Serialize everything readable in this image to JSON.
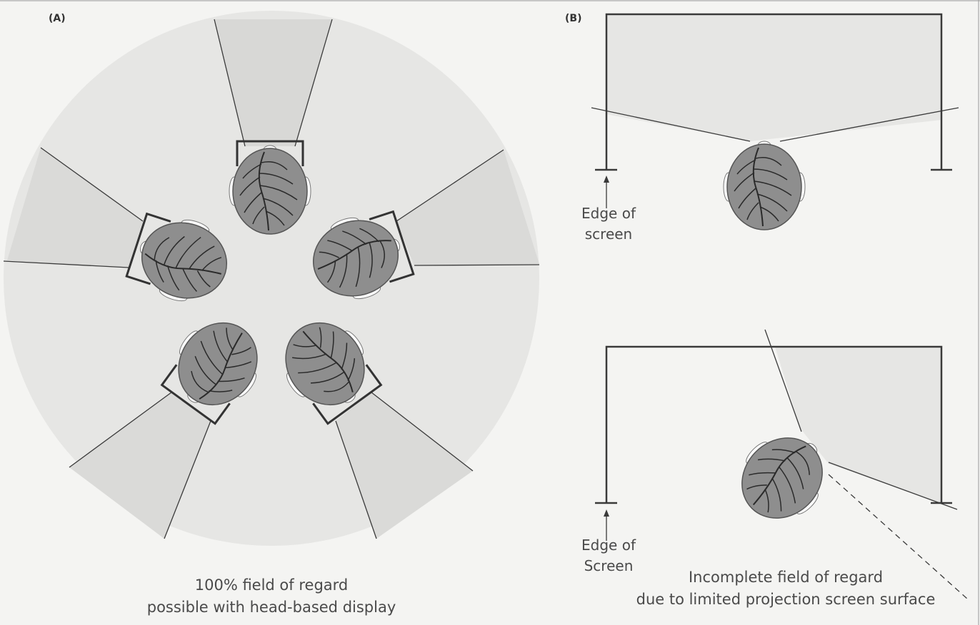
{
  "panel_a": {
    "label": "(A)",
    "caption_line1": "100% field of regard",
    "caption_line2": "possible with head-based display"
  },
  "panel_b": {
    "label": "(B)",
    "top_edge_line1": "Edge of",
    "top_edge_line2": "screen",
    "bottom_edge_line1": "Edge of",
    "bottom_edge_line2": "Screen",
    "caption_line1": "Incomplete field of regard",
    "caption_line2": "due to limited projection screen surface"
  },
  "colors": {
    "background": "#f4f4f2",
    "field": "#e6e6e4",
    "head": "#8e8e8e",
    "line": "#3a3a3a"
  }
}
